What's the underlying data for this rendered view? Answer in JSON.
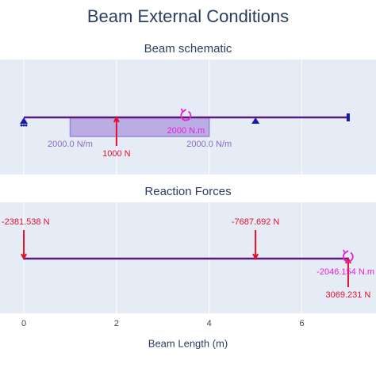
{
  "title": "Beam External Conditions",
  "chart_data": [
    {
      "type": "beam",
      "title": "Beam schematic",
      "xlim": [
        -0.514,
        7.6
      ],
      "xticks": [
        0,
        2,
        4,
        6
      ],
      "tick_labels": false,
      "grid": true,
      "beam": {
        "start": 0,
        "end": 7,
        "color": "#5b1a7a"
      },
      "supports": [
        {
          "type": "pin",
          "x": 0
        },
        {
          "type": "roller",
          "x": 5
        },
        {
          "type": "fixed",
          "x": 7
        }
      ],
      "distributed_loads": [
        {
          "start": 1,
          "end": 4,
          "value": 2000,
          "start_label": "2000.0 N/m",
          "end_label": "2000.0 N/m",
          "color": "#9c84d8"
        }
      ],
      "point_loads": [
        {
          "x": 2,
          "value": 1000,
          "label": "1000 N",
          "color": "#e0112b"
        }
      ],
      "moments": [
        {
          "x": 3.5,
          "value": 2000,
          "label": "2000 N.m",
          "color": "#e81fd6"
        }
      ]
    },
    {
      "type": "beam",
      "title": "Reaction Forces",
      "xlim": [
        -0.514,
        7.6
      ],
      "xticks": [
        0,
        2,
        4,
        6
      ],
      "tick_labels": true,
      "grid": true,
      "xlabel": "Beam Length (m)",
      "beam": {
        "start": 0,
        "end": 7,
        "color": "#5b1a7a"
      },
      "supports": [],
      "distributed_loads": [],
      "point_loads": [
        {
          "x": 0,
          "value": -2381.538,
          "label": "-2381.538 N",
          "color": "#e0112b"
        },
        {
          "x": 5,
          "value": -7687.692,
          "label": "-7687.692 N",
          "color": "#e0112b"
        },
        {
          "x": 7,
          "value": 3069.231,
          "label": "3069.231 N",
          "color": "#e0112b"
        }
      ],
      "moments": [
        {
          "x": 7,
          "value": -2046.154,
          "label": "-2046.154 N.m",
          "color": "#e81fd6"
        }
      ]
    }
  ]
}
